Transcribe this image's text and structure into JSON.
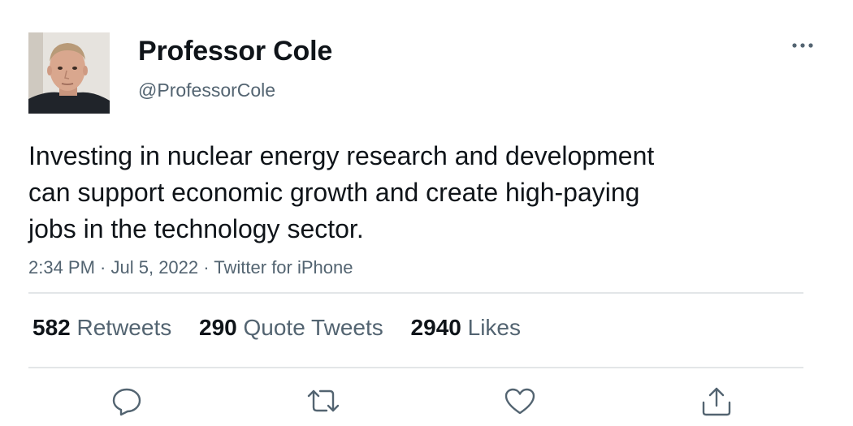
{
  "author": {
    "display_name": "Professor Cole",
    "handle": "@ProfessorCole",
    "avatar_icon": "profile-photo"
  },
  "tweet": {
    "text": "Investing in nuclear energy research and development\ncan support economic growth and create high-paying\njobs in the technology sector.",
    "time": "2:34 PM",
    "date": "Jul 5, 2022",
    "source": "Twitter for iPhone",
    "separator": " · "
  },
  "stats": {
    "retweets": {
      "count": "582",
      "label": "Retweets"
    },
    "quote_tweets": {
      "count": "290",
      "label": "Quote Tweets"
    },
    "likes": {
      "count": "2940",
      "label": "Likes"
    }
  },
  "actions": {
    "reply_icon": "reply-icon",
    "retweet_icon": "retweet-icon",
    "like_icon": "heart-icon",
    "share_icon": "share-icon",
    "more_icon": "more-icon"
  },
  "colors": {
    "text_primary": "#0f1419",
    "text_secondary": "#536471",
    "divider": "#e3e6e8",
    "background": "#ffffff"
  }
}
